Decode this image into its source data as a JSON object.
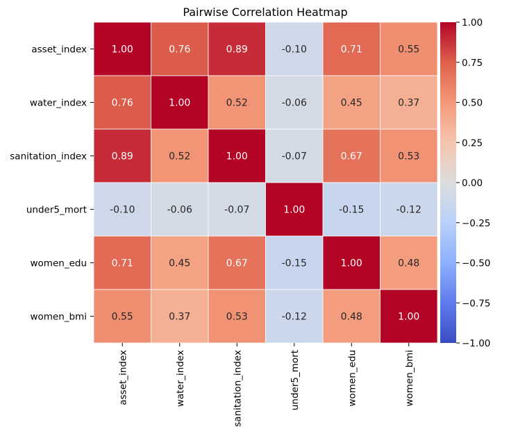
{
  "chart_data": {
    "type": "heatmap",
    "title": "Pairwise Correlation Heatmap",
    "rows": [
      "asset_index",
      "water_index",
      "sanitation_index",
      "under5_mort",
      "women_edu",
      "women_bmi"
    ],
    "columns": [
      "asset_index",
      "water_index",
      "sanitation_index",
      "under5_mort",
      "women_edu",
      "women_bmi"
    ],
    "values": [
      [
        1.0,
        0.76,
        0.89,
        -0.1,
        0.71,
        0.55
      ],
      [
        0.76,
        1.0,
        0.52,
        -0.06,
        0.45,
        0.37
      ],
      [
        0.89,
        0.52,
        1.0,
        -0.07,
        0.67,
        0.53
      ],
      [
        -0.1,
        -0.06,
        -0.07,
        1.0,
        -0.15,
        -0.12
      ],
      [
        0.71,
        0.45,
        0.67,
        -0.15,
        1.0,
        0.48
      ],
      [
        0.55,
        0.37,
        0.53,
        -0.12,
        0.48,
        1.0
      ]
    ],
    "value_format": "0.00",
    "colormap": "coolwarm",
    "vmin": -1.0,
    "vmax": 1.0,
    "colorbar_ticks": [
      1.0,
      0.75,
      0.5,
      0.25,
      0.0,
      -0.25,
      -0.5,
      -0.75,
      -1.0
    ],
    "colorbar_tick_labels": [
      "1.00",
      "0.75",
      "0.50",
      "0.25",
      "0.00",
      "−0.25",
      "−0.50",
      "−0.75",
      "−1.00"
    ],
    "legend_placement": "right (colorbar)",
    "grid": false,
    "cell_border_color": "#ffffff"
  }
}
